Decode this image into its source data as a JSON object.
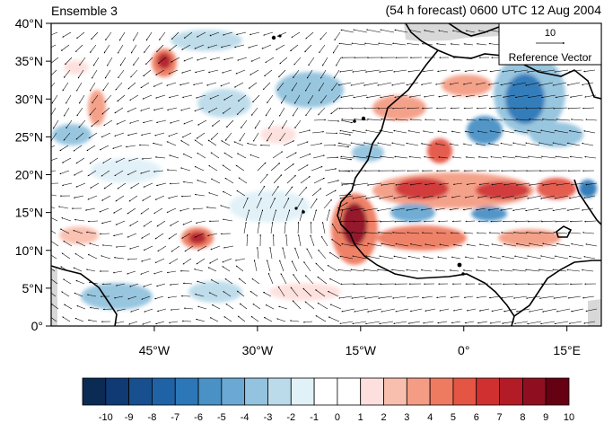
{
  "header": {
    "left_title": "Ensemble 3",
    "right_title": "(54 h forecast) 0600 UTC 12 Aug 2004"
  },
  "map": {
    "lat_range": [
      0,
      40
    ],
    "lon_range": [
      -60,
      20
    ],
    "lat_labels": [
      "40°N",
      "35°N",
      "30°N",
      "25°N",
      "20°N",
      "15°N",
      "10°N",
      "5°N",
      "0°"
    ],
    "lat_values": [
      40,
      35,
      30,
      25,
      20,
      15,
      10,
      5,
      0
    ],
    "lon_labels": [
      "45°W",
      "30°W",
      "15°W",
      "0°",
      "15°E"
    ],
    "lon_values": [
      -45,
      -30,
      -15,
      0,
      15
    ],
    "colors": {
      "ocean_bg": "#ffffff",
      "land_missing": "#d8d8d8",
      "coast": "#000000",
      "vector": "#000000"
    }
  },
  "reference_vector": {
    "value": "10",
    "label": "Reference Vector"
  },
  "colorbar": {
    "labels": [
      "-10",
      "-9",
      "-8",
      "-7",
      "-6",
      "-5",
      "-4",
      "-3",
      "-2",
      "-1",
      "0",
      "1",
      "2",
      "3",
      "4",
      "5",
      "6",
      "7",
      "8",
      "9",
      "10"
    ],
    "colors": [
      "#0b2a54",
      "#0f3a73",
      "#174f8f",
      "#1f63a6",
      "#2b77b8",
      "#4a91c6",
      "#6ba8d3",
      "#93c3de",
      "#bcdbea",
      "#e1f1f8",
      "#ffffff",
      "#ffffff",
      "#fde0dd",
      "#f9bfae",
      "#f49c84",
      "#ee7b60",
      "#e45544",
      "#d03130",
      "#b31b27",
      "#8f0f20",
      "#660013"
    ]
  }
}
